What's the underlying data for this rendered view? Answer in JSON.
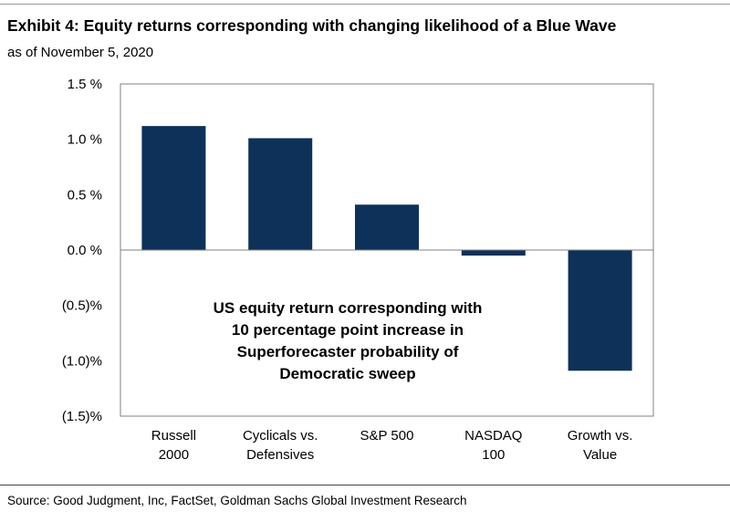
{
  "header": {
    "title": "Exhibit 4: Equity returns corresponding with changing likelihood of a Blue Wave",
    "subtitle": "as of November 5, 2020"
  },
  "footer": {
    "source": "Source: Good Judgment, Inc, FactSet, Goldman Sachs Global Investment Research"
  },
  "colors": {
    "bar": "#0e3159",
    "axis": "#808080"
  },
  "chart_data": {
    "type": "bar",
    "categories": [
      [
        "Russell",
        "2000"
      ],
      [
        "Cyclicals vs.",
        "Defensives"
      ],
      [
        "S&P 500"
      ],
      [
        "NASDAQ",
        "100"
      ],
      [
        "Growth vs.",
        "Value"
      ]
    ],
    "values": [
      1.12,
      1.01,
      0.41,
      -0.05,
      -1.09
    ],
    "ylim": [
      -1.5,
      1.5
    ],
    "yticks": [
      1.5,
      1.0,
      0.5,
      0.0,
      -0.5,
      -1.0,
      -1.5
    ],
    "ytick_labels": [
      "1.5 %",
      "1.0 %",
      "0.5 %",
      "0.0 %",
      "(0.5)%",
      "(1.0)%",
      "(1.5)%"
    ],
    "annotation": [
      "US equity return corresponding with",
      "10 percentage point increase in",
      "Superforecaster probability of",
      "Democratic sweep"
    ],
    "grid": false,
    "legend": "none"
  }
}
